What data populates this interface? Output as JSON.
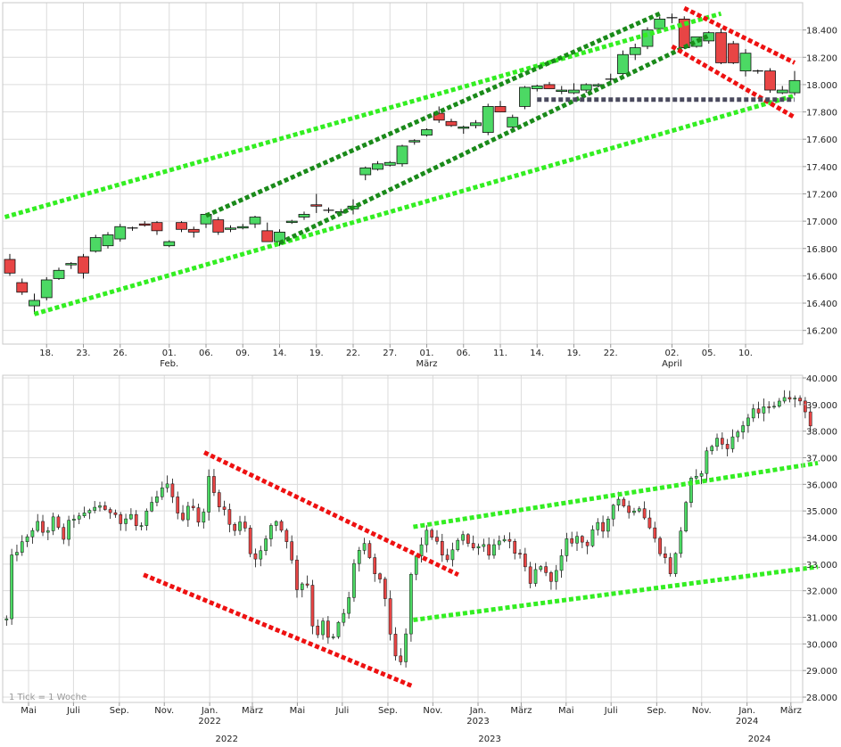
{
  "colors": {
    "up": "#4cd964",
    "down": "#e84545",
    "bright_green": "#33ee22",
    "dark_green": "#1a8a1a",
    "red": "#ee1111",
    "slate": "#4a4a5e",
    "grid": "#dcdcdc"
  },
  "chart_data": [
    {
      "type": "candlestick",
      "title": "",
      "ylim": [
        16100,
        18600
      ],
      "y_ticks": [
        16200,
        16400,
        16600,
        16800,
        17000,
        17200,
        17400,
        17600,
        17800,
        18000,
        18200,
        18400
      ],
      "y_tick_labels": [
        "16.200",
        "16.400",
        "16.600",
        "16.800",
        "17.000",
        "17.200",
        "17.400",
        "17.600",
        "17.800",
        "18.000",
        "18.200",
        "18.400"
      ],
      "x_ticks": [
        {
          "label": "18.",
          "i": 3
        },
        {
          "label": "23.",
          "i": 6
        },
        {
          "label": "26.",
          "i": 9
        },
        {
          "label": "01.",
          "sub": "Feb.",
          "i": 13
        },
        {
          "label": "06.",
          "i": 16
        },
        {
          "label": "09.",
          "i": 19
        },
        {
          "label": "14.",
          "i": 22
        },
        {
          "label": "19.",
          "i": 25
        },
        {
          "label": "22.",
          "i": 28
        },
        {
          "label": "27.",
          "i": 31
        },
        {
          "label": "01.",
          "sub": "März",
          "i": 34
        },
        {
          "label": "06.",
          "i": 37
        },
        {
          "label": "11.",
          "i": 40
        },
        {
          "label": "14.",
          "i": 43
        },
        {
          "label": "19.",
          "i": 46
        },
        {
          "label": "22.",
          "i": 49
        },
        {
          "label": "02.",
          "sub": "April",
          "i": 54
        },
        {
          "label": "05.",
          "i": 57
        },
        {
          "label": "10.",
          "i": 60
        }
      ],
      "candles": [
        [
          16720,
          16760,
          16600,
          16620
        ],
        [
          16550,
          16580,
          16460,
          16480
        ],
        [
          16380,
          16470,
          16320,
          16420
        ],
        [
          16440,
          16590,
          16420,
          16570
        ],
        [
          16580,
          16660,
          16570,
          16640
        ],
        [
          16680,
          16700,
          16650,
          16690
        ],
        [
          16740,
          16760,
          16580,
          16620
        ],
        [
          16780,
          16900,
          16770,
          16880
        ],
        [
          16820,
          16920,
          16800,
          16900
        ],
        [
          16870,
          16980,
          16850,
          16960
        ],
        [
          16950,
          16960,
          16930,
          16945
        ],
        [
          16980,
          17000,
          16960,
          16970
        ],
        [
          16990,
          17000,
          16900,
          16930
        ],
        [
          16820,
          16860,
          16810,
          16850
        ],
        [
          16990,
          17000,
          16920,
          16940
        ],
        [
          16940,
          16960,
          16880,
          16920
        ],
        [
          16980,
          17060,
          16950,
          17050
        ],
        [
          17010,
          17030,
          16900,
          16920
        ],
        [
          16940,
          16970,
          16920,
          16950
        ],
        [
          16950,
          16980,
          16940,
          16960
        ],
        [
          16980,
          17040,
          16950,
          17030
        ],
        [
          16930,
          16990,
          16850,
          16850
        ],
        [
          16850,
          16940,
          16820,
          16920
        ],
        [
          16990,
          17010,
          16980,
          17000
        ],
        [
          17030,
          17070,
          17010,
          17050
        ],
        [
          17120,
          17200,
          17060,
          17110
        ],
        [
          17080,
          17100,
          17060,
          17080
        ],
        [
          17060,
          17090,
          17040,
          17070
        ],
        [
          17090,
          17160,
          17050,
          17110
        ],
        [
          17340,
          17400,
          17300,
          17390
        ],
        [
          17380,
          17440,
          17370,
          17420
        ],
        [
          17410,
          17440,
          17400,
          17430
        ],
        [
          17420,
          17560,
          17400,
          17550
        ],
        [
          17580,
          17600,
          17560,
          17590
        ],
        [
          17630,
          17680,
          17620,
          17670
        ],
        [
          17790,
          17840,
          17720,
          17740
        ],
        [
          17730,
          17750,
          17690,
          17700
        ],
        [
          17680,
          17700,
          17640,
          17690
        ],
        [
          17700,
          17740,
          17680,
          17720
        ],
        [
          17650,
          17860,
          17630,
          17840
        ],
        [
          17840,
          17880,
          17800,
          17800
        ],
        [
          17690,
          17780,
          17680,
          17760
        ],
        [
          17840,
          17990,
          17820,
          17980
        ],
        [
          17970,
          18000,
          17950,
          17990
        ],
        [
          18000,
          18020,
          17970,
          17970
        ],
        [
          17950,
          17990,
          17930,
          17960
        ],
        [
          17940,
          18010,
          17930,
          17960
        ],
        [
          17960,
          18010,
          17940,
          18000
        ],
        [
          17990,
          18010,
          17980,
          18000
        ],
        [
          18040,
          18080,
          18010,
          18040
        ],
        [
          18080,
          18250,
          18050,
          18220
        ],
        [
          18220,
          18300,
          18180,
          18270
        ],
        [
          18280,
          18420,
          18260,
          18400
        ],
        [
          18410,
          18500,
          18390,
          18480
        ],
        [
          18490,
          18520,
          18450,
          18490
        ],
        [
          18480,
          18500,
          18260,
          18270
        ],
        [
          18280,
          18350,
          18270,
          18350
        ],
        [
          18320,
          18390,
          18300,
          18380
        ],
        [
          18380,
          18410,
          18150,
          18160
        ],
        [
          18300,
          18320,
          18150,
          18160
        ],
        [
          18100,
          18260,
          18060,
          18230
        ],
        [
          18100,
          18110,
          18080,
          18100
        ],
        [
          18100,
          18120,
          17940,
          17960
        ],
        [
          17940,
          17990,
          17930,
          17960
        ],
        [
          17940,
          18100,
          17920,
          18030
        ]
      ],
      "trend_lines": [
        {
          "color": "bright_green",
          "points": [
            [
              -0.4,
              17030
            ],
            [
              58,
              18520
            ]
          ]
        },
        {
          "color": "bright_green",
          "points": [
            [
              2,
              16320
            ],
            [
              64,
              17920
            ]
          ]
        },
        {
          "color": "dark_green",
          "points": [
            [
              16,
              17040
            ],
            [
              53,
              18520
            ]
          ]
        },
        {
          "color": "dark_green",
          "points": [
            [
              22,
              16840
            ],
            [
              57,
              18360
            ]
          ]
        },
        {
          "color": "red",
          "points": [
            [
              55,
              18560
            ],
            [
              64,
              18160
            ]
          ]
        },
        {
          "color": "red",
          "points": [
            [
              54,
              18280
            ],
            [
              64,
              17760
            ]
          ]
        },
        {
          "color": "slate",
          "points": [
            [
              43,
              17890
            ],
            [
              64,
              17890
            ]
          ]
        }
      ]
    },
    {
      "type": "candlestick",
      "title": "",
      "ylim": [
        27800,
        40100
      ],
      "y_ticks": [
        28000,
        29000,
        30000,
        31000,
        32000,
        33000,
        34000,
        35000,
        36000,
        37000,
        38000,
        39000,
        40000
      ],
      "y_tick_labels": [
        "28.000",
        "29.000",
        "30.000",
        "31.000",
        "32.000",
        "33.000",
        "34.000",
        "35.000",
        "36.000",
        "37.000",
        "38.000",
        "39.000",
        "40.000"
      ],
      "x_ticks": [
        {
          "label": "Mai",
          "t": 0.08
        },
        {
          "label": "Juli",
          "t": 2.08
        },
        {
          "label": "Sep.",
          "t": 4.12
        },
        {
          "label": "Nov.",
          "t": 6.12
        },
        {
          "label": "Jan.",
          "sub": "2022",
          "t": 8.14
        },
        {
          "label": "März",
          "t": 10.04
        },
        {
          "label": "Mai",
          "t": 12.04
        },
        {
          "label": "Juli",
          "t": 14.04
        },
        {
          "label": "Sep.",
          "t": 16.07
        },
        {
          "label": "Nov.",
          "t": 18.07
        },
        {
          "label": "Jan.",
          "sub": "2023",
          "t": 20.08
        },
        {
          "label": "März",
          "t": 22.0
        },
        {
          "label": "Mai",
          "t": 24.0
        },
        {
          "label": "Juli",
          "t": 26.0
        },
        {
          "label": "Sep.",
          "t": 28.03
        },
        {
          "label": "Nov.",
          "t": 30.03
        },
        {
          "label": "Jan.",
          "sub": "2024",
          "t": 32.05
        },
        {
          "label": "März",
          "t": 34.0
        }
      ],
      "year_labels": [
        {
          "label": "2022",
          "t": 8.9
        },
        {
          "label": "2023",
          "t": 20.6
        },
        {
          "label": "2024",
          "t": 32.6
        }
      ],
      "anchors": [
        [
          -0.9,
          30900
        ],
        [
          -0.8,
          33000
        ],
        [
          -0.4,
          33600
        ],
        [
          0.0,
          33900
        ],
        [
          0.4,
          34600
        ],
        [
          0.8,
          34100
        ],
        [
          1.2,
          34700
        ],
        [
          1.6,
          33900
        ],
        [
          2.0,
          34800
        ],
        [
          2.4,
          34700
        ],
        [
          2.8,
          35000
        ],
        [
          3.2,
          35300
        ],
        [
          3.5,
          34900
        ],
        [
          3.9,
          35100
        ],
        [
          4.2,
          34500
        ],
        [
          4.6,
          34900
        ],
        [
          5.0,
          34200
        ],
        [
          5.4,
          35000
        ],
        [
          5.8,
          35500
        ],
        [
          6.2,
          36000
        ],
        [
          6.5,
          35600
        ],
        [
          6.8,
          34500
        ],
        [
          7.3,
          35500
        ],
        [
          7.7,
          34300
        ],
        [
          8.1,
          36200
        ],
        [
          8.4,
          35500
        ],
        [
          8.8,
          35000
        ],
        [
          9.2,
          34100
        ],
        [
          9.6,
          34900
        ],
        [
          10.0,
          33200
        ],
        [
          10.5,
          33500
        ],
        [
          11.0,
          34800
        ],
        [
          11.6,
          33900
        ],
        [
          12.1,
          31800
        ],
        [
          12.4,
          32800
        ],
        [
          12.8,
          30200
        ],
        [
          13.2,
          30800
        ],
        [
          13.5,
          29900
        ],
        [
          13.9,
          30800
        ],
        [
          14.3,
          31500
        ],
        [
          14.6,
          33300
        ],
        [
          15.0,
          33700
        ],
        [
          15.4,
          32800
        ],
        [
          15.9,
          32000
        ],
        [
          16.2,
          30300
        ],
        [
          16.5,
          29000
        ],
        [
          16.8,
          29600
        ],
        [
          17.1,
          32600
        ],
        [
          17.5,
          33700
        ],
        [
          17.9,
          34300
        ],
        [
          18.4,
          33500
        ],
        [
          18.8,
          33000
        ],
        [
          19.1,
          33900
        ],
        [
          19.4,
          34200
        ],
        [
          19.8,
          33500
        ],
        [
          20.2,
          33900
        ],
        [
          20.6,
          33400
        ],
        [
          21.0,
          34000
        ],
        [
          21.5,
          33700
        ],
        [
          22.0,
          33200
        ],
        [
          22.4,
          32200
        ],
        [
          22.8,
          33100
        ],
        [
          23.2,
          32400
        ],
        [
          23.6,
          32700
        ],
        [
          24.0,
          33800
        ],
        [
          24.5,
          34000
        ],
        [
          24.9,
          33700
        ],
        [
          25.3,
          34600
        ],
        [
          25.7,
          34000
        ],
        [
          26.0,
          35300
        ],
        [
          26.4,
          35500
        ],
        [
          26.8,
          34900
        ],
        [
          27.2,
          35300
        ],
        [
          27.6,
          34600
        ],
        [
          28.0,
          33800
        ],
        [
          28.4,
          33200
        ],
        [
          28.7,
          32600
        ],
        [
          29.1,
          34300
        ],
        [
          29.5,
          36100
        ],
        [
          29.9,
          36200
        ],
        [
          30.3,
          37300
        ],
        [
          30.7,
          37700
        ],
        [
          31.1,
          37400
        ],
        [
          31.5,
          37800
        ],
        [
          31.9,
          38300
        ],
        [
          32.3,
          38700
        ],
        [
          32.7,
          38700
        ],
        [
          33.1,
          39100
        ],
        [
          33.4,
          38900
        ],
        [
          33.8,
          39500
        ],
        [
          34.2,
          39100
        ],
        [
          34.5,
          39200
        ],
        [
          34.75,
          38500
        ],
        [
          34.95,
          38000
        ]
      ],
      "trend_lines": [
        {
          "color": "red",
          "points": [
            [
              7.9,
              37200
            ],
            [
              19.2,
              32600
            ]
          ]
        },
        {
          "color": "red",
          "points": [
            [
              5.2,
              32600
            ],
            [
              17.2,
              28400
            ]
          ]
        },
        {
          "color": "bright_green",
          "points": [
            [
              17.2,
              34400
            ],
            [
              35.2,
              36800
            ]
          ]
        },
        {
          "color": "bright_green",
          "points": [
            [
              17.2,
              30900
            ],
            [
              35.2,
              32900
            ]
          ]
        }
      ],
      "note": "1 Tick = 1 Woche"
    }
  ]
}
